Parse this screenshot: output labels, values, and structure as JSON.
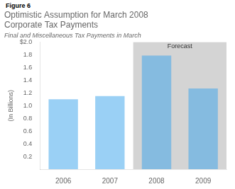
{
  "chart_data": {
    "type": "bar",
    "title": [
      "Optimistic Assumption for March 2008",
      "Corporate Tax Payments"
    ],
    "subtitle": "Final and Miscellaneous Tax Payments in March",
    "ylabel": "(In Billions)",
    "categories": [
      "2006",
      "2007",
      "2008",
      "2009"
    ],
    "values": [
      1.1,
      1.15,
      1.79,
      1.27
    ],
    "ylim": [
      0,
      2.0
    ],
    "yticks": [
      0.2,
      0.4,
      0.6,
      0.8,
      {
        "value": 1.0,
        "label": "1.0"
      },
      1.2,
      1.4,
      1.6,
      1.8,
      {
        "value": 2.0,
        "label": "$2.0"
      }
    ],
    "grid": false,
    "annotations": [
      {
        "text": "Figure 6"
      },
      {
        "text": "Forecast",
        "from": "2008",
        "to": "2009",
        "color": "#d4d4d4"
      }
    ]
  }
}
